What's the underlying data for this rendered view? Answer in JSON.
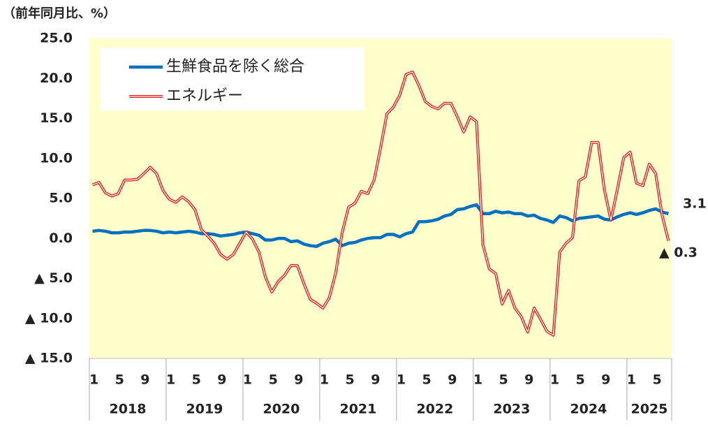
{
  "chart_data": {
    "type": "line",
    "y_label": "（前年同月比、%）",
    "categories": [
      "1",
      null,
      null,
      null,
      "5",
      null,
      null,
      null,
      "9",
      null,
      null,
      null,
      "1",
      null,
      null,
      null,
      "5",
      null,
      null,
      null,
      "9",
      null,
      null,
      null,
      "1",
      null,
      null,
      null,
      "5",
      null,
      null,
      null,
      "9",
      null,
      null,
      null,
      "1",
      null,
      null,
      null,
      "5",
      null,
      null,
      null,
      "9",
      null,
      null,
      null,
      "1",
      null,
      null,
      null,
      "5",
      null,
      null,
      null,
      "9",
      null,
      null,
      null,
      "1",
      null,
      null,
      null,
      "5",
      null,
      null,
      null,
      "9",
      null,
      null,
      null,
      "1",
      null,
      null,
      null,
      "5",
      null,
      null,
      null,
      "9",
      null,
      null,
      null,
      "1",
      null,
      null,
      null,
      "5",
      null,
      null
    ],
    "years": [
      "2018",
      "2019",
      "2020",
      "2021",
      "2022",
      "2023",
      "2024",
      "2025"
    ],
    "series": [
      {
        "name": "生鮮食品を除く総合",
        "color": "#0070c0",
        "style": "solid",
        "values": [
          0.9,
          1.0,
          0.9,
          0.7,
          0.7,
          0.8,
          0.8,
          0.9,
          1.0,
          1.0,
          0.9,
          0.7,
          0.8,
          0.7,
          0.8,
          0.9,
          0.8,
          0.6,
          0.6,
          0.5,
          0.3,
          0.4,
          0.5,
          0.7,
          0.8,
          0.6,
          0.4,
          -0.2,
          -0.2,
          0.0,
          0.0,
          -0.4,
          -0.3,
          -0.7,
          -0.9,
          -1.0,
          -0.6,
          -0.4,
          -0.1,
          -0.9,
          -0.6,
          -0.5,
          -0.2,
          0.0,
          0.1,
          0.1,
          0.5,
          0.5,
          0.2,
          0.6,
          0.8,
          2.1,
          2.1,
          2.2,
          2.4,
          2.8,
          3.0,
          3.6,
          3.7,
          4.0,
          4.2,
          3.1,
          3.1,
          3.4,
          3.2,
          3.3,
          3.1,
          3.1,
          2.8,
          2.9,
          2.5,
          2.3,
          2.0,
          2.8,
          2.6,
          2.2,
          2.5,
          2.6,
          2.7,
          2.8,
          2.4,
          2.3,
          2.7,
          3.0,
          3.2,
          3.0,
          3.2,
          3.5,
          3.7,
          3.3,
          3.1
        ]
      },
      {
        "name": "エネルギー",
        "color": "#e8221e",
        "style": "double",
        "values": [
          6.7,
          7.0,
          5.7,
          5.3,
          5.6,
          7.3,
          7.3,
          7.4,
          8.1,
          8.9,
          8.1,
          6.0,
          4.9,
          4.5,
          5.2,
          4.6,
          3.6,
          1.1,
          0.3,
          -0.6,
          -2.0,
          -2.6,
          -2.0,
          -0.6,
          0.8,
          -0.1,
          -1.7,
          -4.8,
          -6.7,
          -5.4,
          -4.6,
          -3.4,
          -3.4,
          -5.6,
          -7.6,
          -8.1,
          -8.7,
          -7.4,
          -4.3,
          0.7,
          3.9,
          4.4,
          5.9,
          5.6,
          7.3,
          11.3,
          15.6,
          16.4,
          17.9,
          20.5,
          20.8,
          19.1,
          17.1,
          16.5,
          16.2,
          16.9,
          16.9,
          15.2,
          13.3,
          15.2,
          14.6,
          -0.8,
          -3.8,
          -4.4,
          -8.2,
          -6.5,
          -8.7,
          -9.8,
          -11.7,
          -8.7,
          -10.1,
          -11.6,
          -12.1,
          -1.7,
          -0.6,
          0.1,
          7.2,
          7.7,
          12.0,
          12.0,
          6.0,
          2.3,
          6.1,
          10.1,
          10.8,
          6.9,
          6.6,
          9.3,
          8.1,
          2.9,
          -0.3
        ]
      }
    ],
    "annotations": [
      "3.1",
      "▲ 0.3"
    ],
    "ylim": [
      -15,
      25
    ],
    "yticks": [
      {
        "value": -15,
        "label": "▲ 15.0"
      },
      {
        "value": -10,
        "label": "▲ 10.0"
      },
      {
        "value": -5,
        "label": "▲ 5.0"
      },
      {
        "value": 0,
        "label": "0.0"
      },
      {
        "value": 5,
        "label": "5.0"
      },
      {
        "value": 10,
        "label": "10.0"
      },
      {
        "value": 15,
        "label": "15.0"
      },
      {
        "value": 20,
        "label": "20.0"
      },
      {
        "value": 25,
        "label": "25.0"
      }
    ],
    "grid": false,
    "plot_background": "#ffffcc",
    "legend": "upper left"
  }
}
